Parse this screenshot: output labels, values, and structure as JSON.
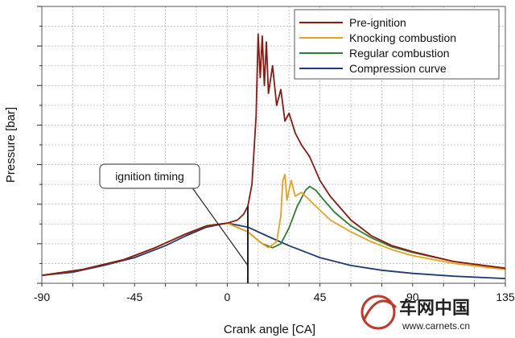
{
  "chart_data": {
    "type": "line",
    "title": "",
    "xlabel": "Crank angle  [CA]",
    "ylabel": "Pressure  [bar]",
    "xlim": [
      -90,
      135
    ],
    "ylim": [
      0,
      7
    ],
    "x_ticks": [
      "-90",
      "-45",
      "0",
      "45",
      "90",
      "135"
    ],
    "x_tick_values": [
      -90,
      -45,
      0,
      45,
      90,
      135
    ],
    "y_tick_labels_shown": false,
    "grid": true,
    "legend_position": "top-right",
    "annotation": {
      "text": "ignition timing",
      "x": 10
    },
    "series": [
      {
        "name": "Pre-ignition",
        "color": "#8b1a10",
        "points": [
          [
            -90,
            0.2
          ],
          [
            -70,
            0.35
          ],
          [
            -50,
            0.6
          ],
          [
            -35,
            0.9
          ],
          [
            -20,
            1.25
          ],
          [
            -10,
            1.45
          ],
          [
            0,
            1.52
          ],
          [
            5,
            1.6
          ],
          [
            8,
            1.75
          ],
          [
            10,
            1.95
          ],
          [
            12,
            2.5
          ],
          [
            14,
            4.2
          ],
          [
            15,
            6.3
          ],
          [
            16,
            5.2
          ],
          [
            17,
            6.25
          ],
          [
            18,
            5.0
          ],
          [
            19,
            6.1
          ],
          [
            20,
            4.8
          ],
          [
            22,
            5.5
          ],
          [
            24,
            4.5
          ],
          [
            26,
            4.9
          ],
          [
            28,
            4.1
          ],
          [
            30,
            4.3
          ],
          [
            33,
            3.8
          ],
          [
            36,
            3.5
          ],
          [
            40,
            3.2
          ],
          [
            45,
            2.6
          ],
          [
            50,
            2.2
          ],
          [
            55,
            1.9
          ],
          [
            60,
            1.6
          ],
          [
            70,
            1.2
          ],
          [
            80,
            0.95
          ],
          [
            90,
            0.8
          ],
          [
            110,
            0.55
          ],
          [
            135,
            0.38
          ]
        ]
      },
      {
        "name": "Knocking combustion",
        "color": "#e8a020",
        "points": [
          [
            -90,
            0.2
          ],
          [
            -70,
            0.35
          ],
          [
            -50,
            0.6
          ],
          [
            -35,
            0.9
          ],
          [
            -20,
            1.25
          ],
          [
            -10,
            1.45
          ],
          [
            0,
            1.52
          ],
          [
            10,
            1.3
          ],
          [
            17,
            1.0
          ],
          [
            20,
            0.9
          ],
          [
            24,
            1.05
          ],
          [
            26,
            1.7
          ],
          [
            27,
            2.6
          ],
          [
            28,
            2.75
          ],
          [
            29,
            2.1
          ],
          [
            31,
            2.6
          ],
          [
            33,
            2.2
          ],
          [
            36,
            2.3
          ],
          [
            40,
            2.1
          ],
          [
            45,
            1.85
          ],
          [
            50,
            1.6
          ],
          [
            60,
            1.3
          ],
          [
            70,
            1.05
          ],
          [
            80,
            0.85
          ],
          [
            90,
            0.7
          ],
          [
            110,
            0.5
          ],
          [
            135,
            0.35
          ]
        ]
      },
      {
        "name": "Regular combustion",
        "color": "#2e7d32",
        "points": [
          [
            -90,
            0.2
          ],
          [
            -70,
            0.35
          ],
          [
            -50,
            0.6
          ],
          [
            -35,
            0.9
          ],
          [
            -20,
            1.25
          ],
          [
            -10,
            1.45
          ],
          [
            0,
            1.52
          ],
          [
            10,
            1.3
          ],
          [
            17,
            1.0
          ],
          [
            22,
            0.9
          ],
          [
            26,
            1.0
          ],
          [
            30,
            1.4
          ],
          [
            34,
            1.95
          ],
          [
            38,
            2.35
          ],
          [
            40,
            2.45
          ],
          [
            43,
            2.35
          ],
          [
            47,
            2.1
          ],
          [
            52,
            1.8
          ],
          [
            60,
            1.45
          ],
          [
            70,
            1.15
          ],
          [
            80,
            0.92
          ],
          [
            90,
            0.78
          ],
          [
            110,
            0.55
          ],
          [
            135,
            0.38
          ]
        ]
      },
      {
        "name": "Compression curve",
        "color": "#1f3b73",
        "points": [
          [
            -90,
            0.2
          ],
          [
            -75,
            0.28
          ],
          [
            -60,
            0.45
          ],
          [
            -45,
            0.65
          ],
          [
            -30,
            0.95
          ],
          [
            -20,
            1.2
          ],
          [
            -10,
            1.42
          ],
          [
            0,
            1.52
          ],
          [
            10,
            1.42
          ],
          [
            20,
            1.18
          ],
          [
            30,
            0.95
          ],
          [
            45,
            0.65
          ],
          [
            60,
            0.45
          ],
          [
            75,
            0.33
          ],
          [
            90,
            0.25
          ],
          [
            110,
            0.18
          ],
          [
            135,
            0.12
          ]
        ]
      }
    ]
  },
  "watermark": {
    "brand": "车网中国",
    "url": "www.carnets.cn"
  }
}
